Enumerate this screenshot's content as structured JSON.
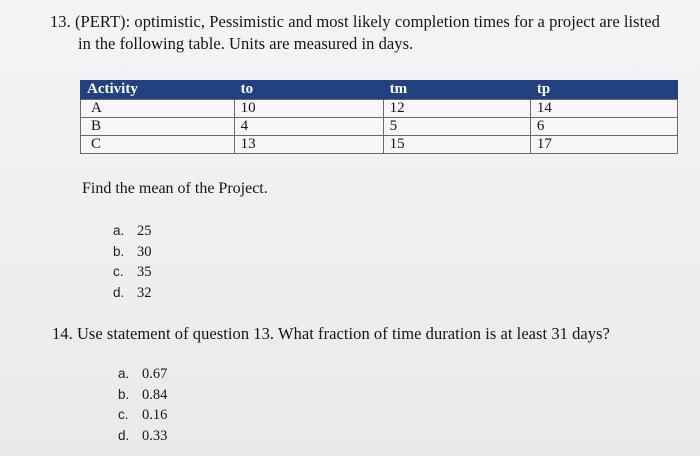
{
  "question13": {
    "line1": "13. (PERT): optimistic, Pessimistic and most likely completion times for a project are listed",
    "line2": "in the following table. Units are measured in days.",
    "prompt": "Find the mean of the Project.",
    "table": {
      "headers": [
        "Activity",
        "to",
        "tm",
        "tp"
      ],
      "rows": [
        [
          "A",
          "10",
          "12",
          "14"
        ],
        [
          "B",
          "4",
          "5",
          "6"
        ],
        [
          "C",
          "13",
          "15",
          "17"
        ]
      ]
    },
    "options": [
      {
        "letter": "a.",
        "value": "25"
      },
      {
        "letter": "b.",
        "value": "30"
      },
      {
        "letter": "c.",
        "value": "35"
      },
      {
        "letter": "d.",
        "value": "32"
      }
    ]
  },
  "question14": {
    "text": "14. Use statement of question 13. What fraction of time duration is at least 31 days?",
    "options": [
      {
        "letter": "a.",
        "value": "0.67"
      },
      {
        "letter": "b.",
        "value": "0.84"
      },
      {
        "letter": "c.",
        "value": "0.16"
      },
      {
        "letter": "d.",
        "value": "0.33"
      }
    ]
  }
}
